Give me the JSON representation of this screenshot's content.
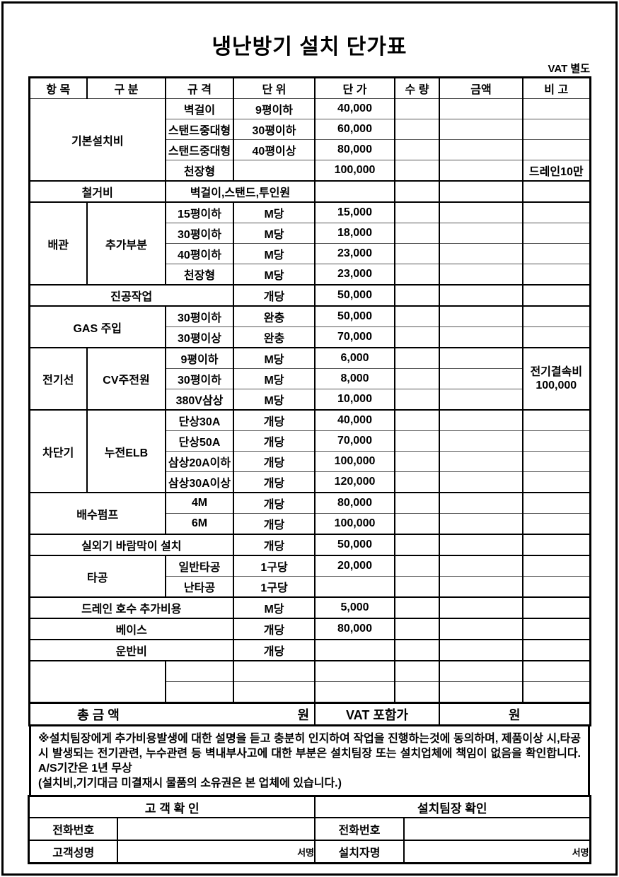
{
  "page": {
    "title": "냉난방기 설치 단가표",
    "vat_note": "VAT 별도"
  },
  "price_table": {
    "headers": [
      "항 목",
      "구 분",
      "규 격",
      "단 위",
      "단 가",
      "수 량",
      "금액",
      "비 고"
    ],
    "column_names": [
      "item",
      "category",
      "spec",
      "unit",
      "unit-price",
      "qty",
      "amount",
      "remark"
    ],
    "rows": [
      {
        "sep": "sub",
        "cells": [
          {
            "t": "기본설치비",
            "c": 0,
            "cs": 2,
            "rs": 4
          },
          {
            "t": "벽걸이",
            "c": 2
          },
          {
            "t": "9평이하",
            "c": 3
          },
          {
            "t": "40,000",
            "c": 4,
            "k": "price"
          },
          {
            "t": "",
            "c": 5
          },
          {
            "t": "",
            "c": 6
          },
          {
            "t": "",
            "c": 7
          }
        ]
      },
      {
        "sep": "sub",
        "cells": [
          {
            "t": "스탠드중대형",
            "c": 2
          },
          {
            "t": "30평이하",
            "c": 3
          },
          {
            "t": "60,000",
            "c": 4,
            "k": "price"
          },
          {
            "t": "",
            "c": 5
          },
          {
            "t": "",
            "c": 6
          },
          {
            "t": "",
            "c": 7
          }
        ]
      },
      {
        "sep": "sub",
        "cells": [
          {
            "t": "스탠드중대형",
            "c": 2
          },
          {
            "t": "40평이상",
            "c": 3
          },
          {
            "t": "80,000",
            "c": 4,
            "k": "price"
          },
          {
            "t": "",
            "c": 5
          },
          {
            "t": "",
            "c": 6
          },
          {
            "t": "",
            "c": 7
          }
        ]
      },
      {
        "sep": "sub",
        "cells": [
          {
            "t": "천장형",
            "c": 2
          },
          {
            "t": "",
            "c": 3
          },
          {
            "t": "100,000",
            "c": 4,
            "k": "price"
          },
          {
            "t": "",
            "c": 5
          },
          {
            "t": "",
            "c": 6
          },
          {
            "t": "드레인10만",
            "c": 7
          }
        ]
      },
      {
        "sep": "sec",
        "cells": [
          {
            "t": "철거비",
            "c": 0,
            "cs": 2
          },
          {
            "t": "벽걸이,스탠드,투인원",
            "c": 2,
            "cs": 2
          },
          {
            "t": "",
            "c": 4,
            "k": "price"
          },
          {
            "t": "",
            "c": 5
          },
          {
            "t": "",
            "c": 6
          },
          {
            "t": "",
            "c": 7
          }
        ]
      },
      {
        "sep": "sec",
        "cells": [
          {
            "t": "배관",
            "c": 0,
            "rs": 4
          },
          {
            "t": "추가부분",
            "c": 1,
            "rs": 4
          },
          {
            "t": "15평이하",
            "c": 2
          },
          {
            "t": "M당",
            "c": 3
          },
          {
            "t": "15,000",
            "c": 4,
            "k": "price"
          },
          {
            "t": "",
            "c": 5
          },
          {
            "t": "",
            "c": 6
          },
          {
            "t": "",
            "c": 7
          }
        ]
      },
      {
        "sep": "sub",
        "cells": [
          {
            "t": "30평이하",
            "c": 2
          },
          {
            "t": "M당",
            "c": 3
          },
          {
            "t": "18,000",
            "c": 4,
            "k": "price"
          },
          {
            "t": "",
            "c": 5
          },
          {
            "t": "",
            "c": 6
          },
          {
            "t": "",
            "c": 7
          }
        ]
      },
      {
        "sep": "sub",
        "cells": [
          {
            "t": "40평이하",
            "c": 2
          },
          {
            "t": "M당",
            "c": 3
          },
          {
            "t": "23,000",
            "c": 4,
            "k": "price"
          },
          {
            "t": "",
            "c": 5
          },
          {
            "t": "",
            "c": 6
          },
          {
            "t": "",
            "c": 7
          }
        ]
      },
      {
        "sep": "sub",
        "cells": [
          {
            "t": "천장형",
            "c": 2
          },
          {
            "t": "M당",
            "c": 3
          },
          {
            "t": "23,000",
            "c": 4,
            "k": "price"
          },
          {
            "t": "",
            "c": 5
          },
          {
            "t": "",
            "c": 6
          },
          {
            "t": "",
            "c": 7
          }
        ]
      },
      {
        "sep": "sec",
        "cells": [
          {
            "t": "진공작업",
            "c": 0,
            "cs": 3
          },
          {
            "t": "개당",
            "c": 3
          },
          {
            "t": "50,000",
            "c": 4,
            "k": "price"
          },
          {
            "t": "",
            "c": 5
          },
          {
            "t": "",
            "c": 6
          },
          {
            "t": "",
            "c": 7
          }
        ]
      },
      {
        "sep": "sec",
        "cells": [
          {
            "t": "GAS 주입",
            "c": 0,
            "cs": 2,
            "rs": 2
          },
          {
            "t": "30평이하",
            "c": 2
          },
          {
            "t": "완충",
            "c": 3
          },
          {
            "t": "50,000",
            "c": 4,
            "k": "price"
          },
          {
            "t": "",
            "c": 5
          },
          {
            "t": "",
            "c": 6
          },
          {
            "t": "",
            "c": 7
          }
        ]
      },
      {
        "sep": "sub",
        "cells": [
          {
            "t": "30평이상",
            "c": 2
          },
          {
            "t": "완충",
            "c": 3
          },
          {
            "t": "70,000",
            "c": 4,
            "k": "price"
          },
          {
            "t": "",
            "c": 5
          },
          {
            "t": "",
            "c": 6
          },
          {
            "t": "",
            "c": 7
          }
        ]
      },
      {
        "sep": "sec",
        "cells": [
          {
            "t": "전기선",
            "c": 0,
            "rs": 3
          },
          {
            "t": "CV주전원",
            "c": 1,
            "rs": 3
          },
          {
            "t": "9평이하",
            "c": 2
          },
          {
            "t": "M당",
            "c": 3
          },
          {
            "t": "6,000",
            "c": 4,
            "k": "price"
          },
          {
            "t": "",
            "c": 5
          },
          {
            "t": "",
            "c": 6
          },
          {
            "t": "전기결속비\n100,000",
            "c": 7,
            "rs": 3,
            "k": "note"
          }
        ]
      },
      {
        "sep": "sub",
        "cells": [
          {
            "t": "30평이하",
            "c": 2
          },
          {
            "t": "M당",
            "c": 3
          },
          {
            "t": "8,000",
            "c": 4,
            "k": "price"
          },
          {
            "t": "",
            "c": 5
          },
          {
            "t": "",
            "c": 6
          }
        ]
      },
      {
        "sep": "sub",
        "cells": [
          {
            "t": "380V삼상",
            "c": 2
          },
          {
            "t": "M당",
            "c": 3
          },
          {
            "t": "10,000",
            "c": 4,
            "k": "price"
          },
          {
            "t": "",
            "c": 5
          },
          {
            "t": "",
            "c": 6
          }
        ]
      },
      {
        "sep": "sec",
        "cells": [
          {
            "t": "차단기",
            "c": 0,
            "rs": 4
          },
          {
            "t": "누전ELB",
            "c": 1,
            "rs": 4
          },
          {
            "t": "단상30A",
            "c": 2
          },
          {
            "t": "개당",
            "c": 3
          },
          {
            "t": "40,000",
            "c": 4,
            "k": "price"
          },
          {
            "t": "",
            "c": 5
          },
          {
            "t": "",
            "c": 6
          },
          {
            "t": "",
            "c": 7
          }
        ]
      },
      {
        "sep": "sub",
        "cells": [
          {
            "t": "단상50A",
            "c": 2
          },
          {
            "t": "개당",
            "c": 3
          },
          {
            "t": "70,000",
            "c": 4,
            "k": "price"
          },
          {
            "t": "",
            "c": 5
          },
          {
            "t": "",
            "c": 6
          },
          {
            "t": "",
            "c": 7
          }
        ]
      },
      {
        "sep": "sub",
        "cells": [
          {
            "t": "삼상20A이하",
            "c": 2
          },
          {
            "t": "개당",
            "c": 3
          },
          {
            "t": "100,000",
            "c": 4,
            "k": "price"
          },
          {
            "t": "",
            "c": 5
          },
          {
            "t": "",
            "c": 6
          },
          {
            "t": "",
            "c": 7
          }
        ]
      },
      {
        "sep": "sub",
        "cells": [
          {
            "t": "삼상30A이상",
            "c": 2
          },
          {
            "t": "개당",
            "c": 3
          },
          {
            "t": "120,000",
            "c": 4,
            "k": "price"
          },
          {
            "t": "",
            "c": 5
          },
          {
            "t": "",
            "c": 6
          },
          {
            "t": "",
            "c": 7
          }
        ]
      },
      {
        "sep": "sec",
        "cells": [
          {
            "t": "배수펌프",
            "c": 0,
            "cs": 2,
            "rs": 2
          },
          {
            "t": "4M",
            "c": 2
          },
          {
            "t": "개당",
            "c": 3
          },
          {
            "t": "80,000",
            "c": 4,
            "k": "price"
          },
          {
            "t": "",
            "c": 5
          },
          {
            "t": "",
            "c": 6
          },
          {
            "t": "",
            "c": 7
          }
        ]
      },
      {
        "sep": "sub",
        "cells": [
          {
            "t": "6M",
            "c": 2
          },
          {
            "t": "개당",
            "c": 3
          },
          {
            "t": "100,000",
            "c": 4,
            "k": "price"
          },
          {
            "t": "",
            "c": 5
          },
          {
            "t": "",
            "c": 6
          },
          {
            "t": "",
            "c": 7
          }
        ]
      },
      {
        "sep": "sec",
        "cells": [
          {
            "t": "실외기 바람막이 설치",
            "c": 0,
            "cs": 3
          },
          {
            "t": "개당",
            "c": 3
          },
          {
            "t": "50,000",
            "c": 4,
            "k": "price"
          },
          {
            "t": "",
            "c": 5
          },
          {
            "t": "",
            "c": 6
          },
          {
            "t": "",
            "c": 7
          }
        ]
      },
      {
        "sep": "sec",
        "cells": [
          {
            "t": "타공",
            "c": 0,
            "cs": 2,
            "rs": 2
          },
          {
            "t": "일반타공",
            "c": 2
          },
          {
            "t": "1구당",
            "c": 3
          },
          {
            "t": "20,000",
            "c": 4,
            "k": "price"
          },
          {
            "t": "",
            "c": 5
          },
          {
            "t": "",
            "c": 6
          },
          {
            "t": "",
            "c": 7
          }
        ]
      },
      {
        "sep": "sub",
        "cells": [
          {
            "t": "난타공",
            "c": 2
          },
          {
            "t": "1구당",
            "c": 3
          },
          {
            "t": "",
            "c": 4,
            "k": "price"
          },
          {
            "t": "",
            "c": 5
          },
          {
            "t": "",
            "c": 6
          },
          {
            "t": "",
            "c": 7
          }
        ]
      },
      {
        "sep": "sec",
        "cells": [
          {
            "t": "드레인 호수 추가비용",
            "c": 0,
            "cs": 3
          },
          {
            "t": "M당",
            "c": 3
          },
          {
            "t": "5,000",
            "c": 4,
            "k": "price"
          },
          {
            "t": "",
            "c": 5
          },
          {
            "t": "",
            "c": 6
          },
          {
            "t": "",
            "c": 7
          }
        ]
      },
      {
        "sep": "sec",
        "cells": [
          {
            "t": "베이스",
            "c": 0,
            "cs": 3
          },
          {
            "t": "개당",
            "c": 3
          },
          {
            "t": "80,000",
            "c": 4,
            "k": "price"
          },
          {
            "t": "",
            "c": 5
          },
          {
            "t": "",
            "c": 6
          },
          {
            "t": "",
            "c": 7
          }
        ]
      },
      {
        "sep": "sec",
        "cells": [
          {
            "t": "운반비",
            "c": 0,
            "cs": 3
          },
          {
            "t": "개당",
            "c": 3
          },
          {
            "t": "",
            "c": 4,
            "k": "price"
          },
          {
            "t": "",
            "c": 5
          },
          {
            "t": "",
            "c": 6
          },
          {
            "t": "",
            "c": 7
          }
        ]
      },
      {
        "sep": "sec",
        "cells": [
          {
            "t": "",
            "c": 0,
            "cs": 2,
            "rs": 2
          },
          {
            "t": "",
            "c": 2
          },
          {
            "t": "",
            "c": 3
          },
          {
            "t": "",
            "c": 4
          },
          {
            "t": "",
            "c": 5
          },
          {
            "t": "",
            "c": 6
          },
          {
            "t": "",
            "c": 7
          }
        ]
      },
      {
        "sep": "sub",
        "cells": [
          {
            "t": "",
            "c": 2
          },
          {
            "t": "",
            "c": 3
          },
          {
            "t": "",
            "c": 4
          },
          {
            "t": "",
            "c": 5
          },
          {
            "t": "",
            "c": 6
          },
          {
            "t": "",
            "c": 7
          }
        ]
      }
    ]
  },
  "totals": {
    "label": "총 금 액",
    "won_left": "원",
    "vat_label": "VAT 포함가",
    "won_right": "원"
  },
  "disclaimer": {
    "text1": "※설치팀장에게 추가비용발생에 대한 설명을 듣고 충분히 인지하여 작업을 진행하는것에 동의하며, 제품이상 시,타공시 발생되는 전기관련, 누수관련 등 벽내부사고에 대한 부분은 설치팀장 또는 설치업체에 책임이 없음을 확인합니다. A/S기간은 1년 무상",
    "text2": "(설치비,기기대금 미결재시 물품의 소유권은 본 업체에 있습니다.)"
  },
  "confirm": {
    "customer_header": "고 객 확 인",
    "installer_header": "설치팀장 확인",
    "customer_phone_label": "전화번호",
    "installer_phone_label": "전화번호",
    "customer_name_label": "고객성명",
    "installer_name_label": "설치자명",
    "sign_label": "서명",
    "phone_value_customer": "",
    "phone_value_installer": "",
    "name_value_customer": "",
    "name_value_installer": ""
  }
}
